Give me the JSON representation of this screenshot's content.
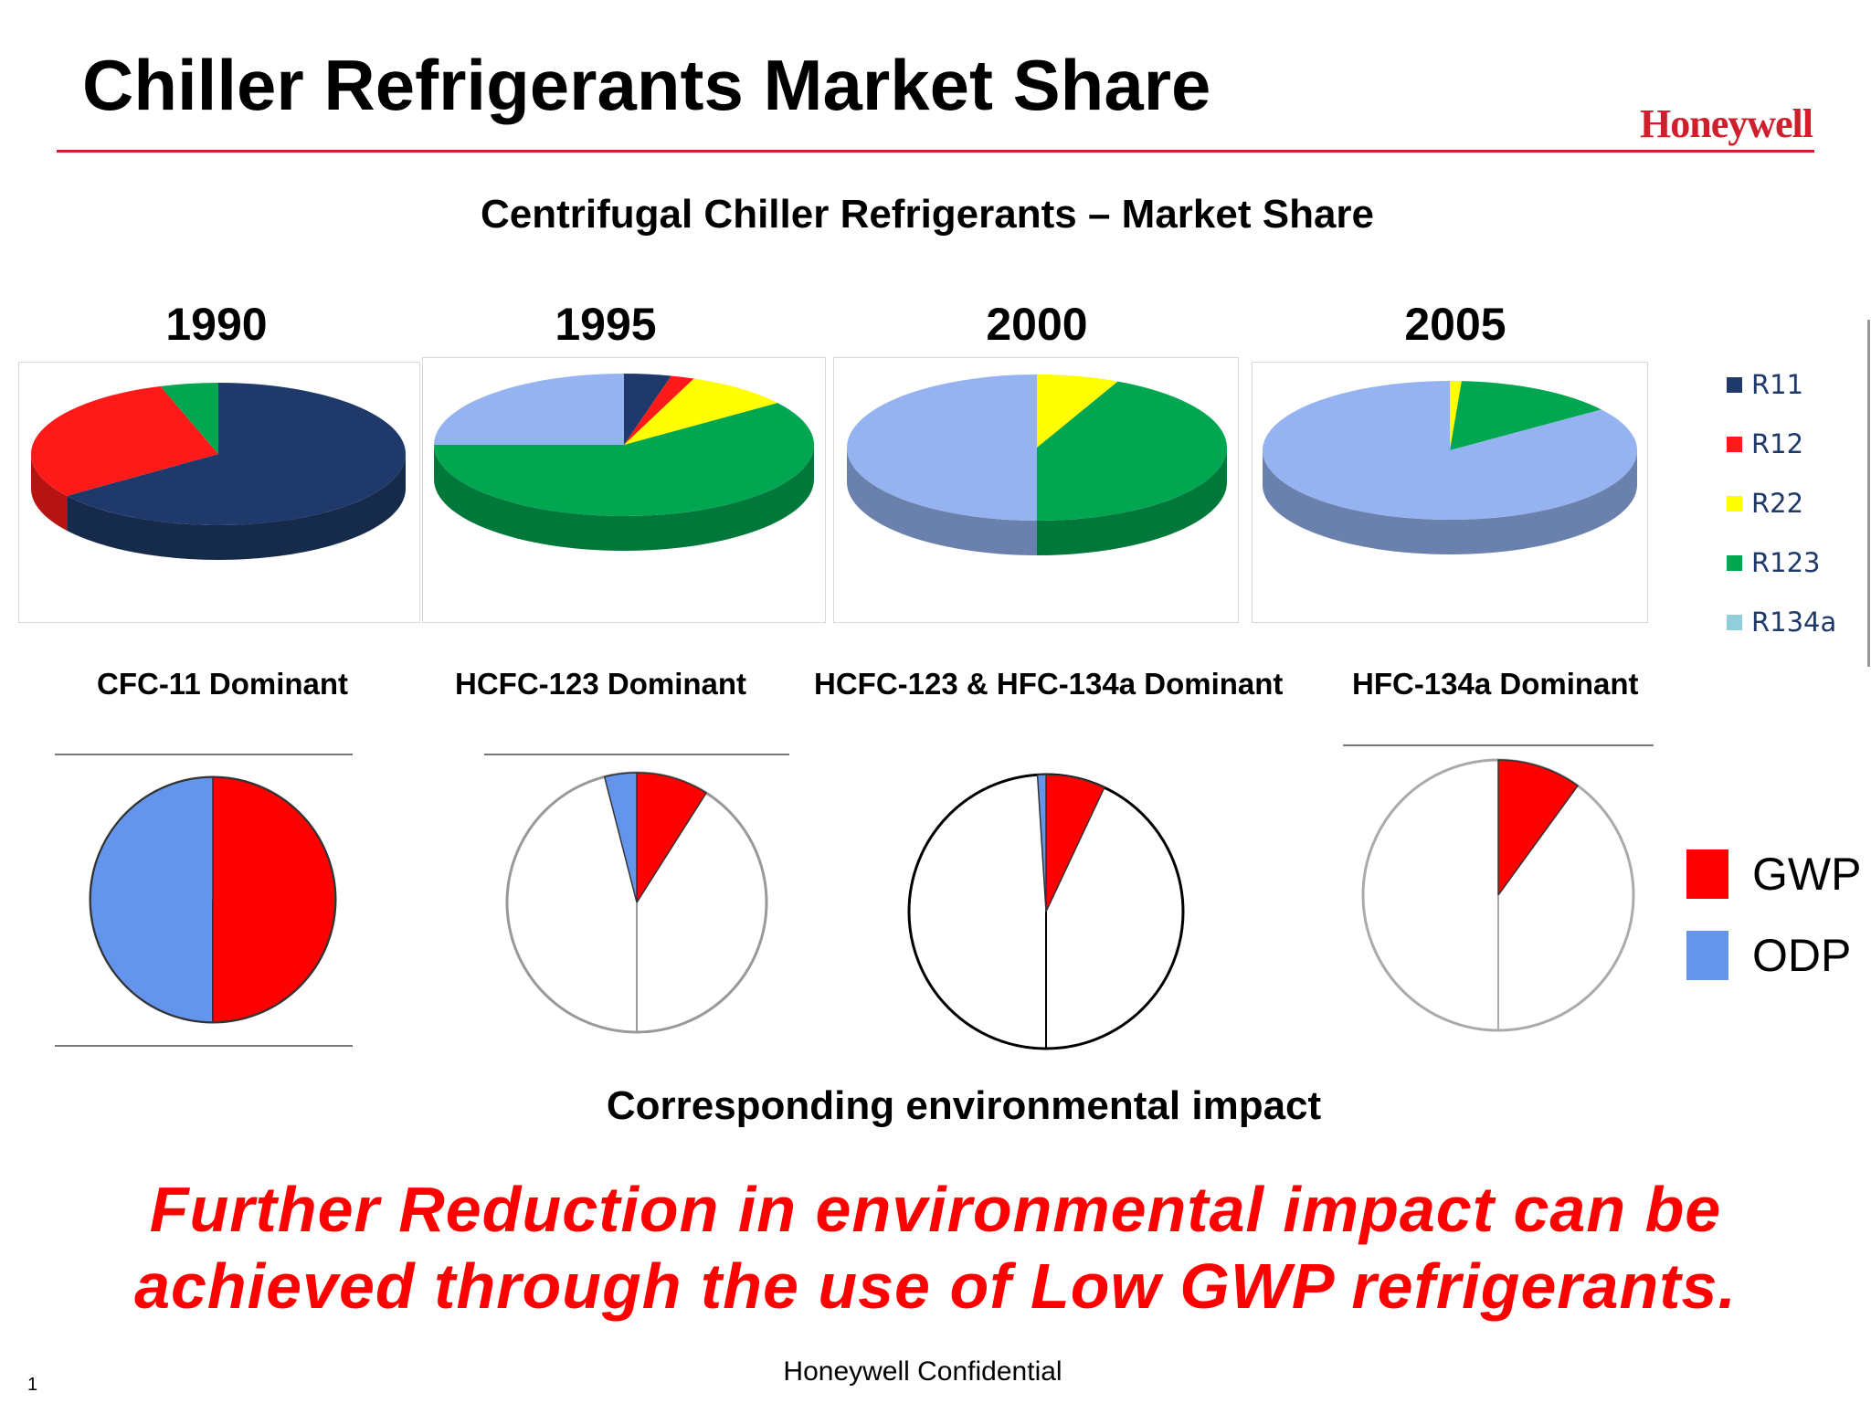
{
  "slide": {
    "title": "Chiller Refrigerants Market Share",
    "logo": "Honeywell",
    "subtitle": "Centrifugal Chiller Refrigerants – Market Share",
    "impact_caption": "Corresponding environmental impact",
    "message": "Further Reduction in environmental impact can be achieved through the use of Low GWP refrigerants.",
    "footer": "Honeywell Confidential",
    "page_number": "1"
  },
  "legend": [
    {
      "label": "R11",
      "color": "#1f3a6a"
    },
    {
      "label": "R12",
      "color": "#ff1a1a"
    },
    {
      "label": "R22",
      "color": "#ffff00"
    },
    {
      "label": "R123",
      "color": "#00a650"
    },
    {
      "label": "R134a",
      "color": "#92cddc"
    }
  ],
  "impact_legend": [
    {
      "label": "GWP",
      "color": "#ff0000"
    },
    {
      "label": "ODP",
      "color": "#6495ed"
    }
  ],
  "chart_data": [
    {
      "type": "pie",
      "title": "1990",
      "caption": "CFC-11 Dominant",
      "categories": [
        "R11",
        "R12",
        "R123"
      ],
      "values": [
        65,
        30,
        5
      ]
    },
    {
      "type": "pie",
      "title": "1995",
      "caption": "HCFC-123 Dominant",
      "categories": [
        "R11",
        "R12",
        "R22",
        "R123",
        "R134a"
      ],
      "values": [
        4,
        2,
        9,
        60,
        25
      ]
    },
    {
      "type": "pie",
      "title": "2000",
      "caption": "HCFC-123 & HFC-134a Dominant",
      "categories": [
        "R22",
        "R123",
        "R134a"
      ],
      "values": [
        7,
        43,
        50
      ]
    },
    {
      "type": "pie",
      "title": "2005",
      "caption": "HFC-134a Dominant",
      "categories": [
        "R22",
        "R123",
        "R134a"
      ],
      "values": [
        1,
        14,
        85
      ]
    },
    {
      "type": "pie",
      "title": "1990 environmental impact",
      "categories": [
        "GWP",
        "ODP",
        "Other"
      ],
      "values": [
        50,
        50,
        0
      ]
    },
    {
      "type": "pie",
      "title": "1995 environmental impact",
      "categories": [
        "GWP",
        "ODP",
        "Other"
      ],
      "values": [
        9,
        4,
        87
      ]
    },
    {
      "type": "pie",
      "title": "2000 environmental impact",
      "categories": [
        "GWP",
        "ODP",
        "Other"
      ],
      "values": [
        7,
        1,
        92
      ]
    },
    {
      "type": "pie",
      "title": "2005 environmental impact",
      "categories": [
        "GWP",
        "ODP",
        "Other"
      ],
      "values": [
        10,
        0,
        90
      ]
    }
  ]
}
